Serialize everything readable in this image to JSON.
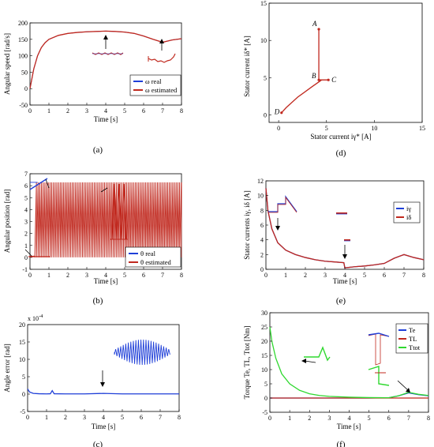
{
  "charts": [
    {
      "id": "a",
      "panel_label": "(a)",
      "type": "line",
      "xlabel": "Time [s]",
      "ylabel": "Angular speed [rad/s]",
      "xlim": [
        0,
        8
      ],
      "ylim": [
        -50,
        200
      ],
      "xticks": [
        0,
        1,
        2,
        3,
        4,
        5,
        6,
        7,
        8
      ],
      "yticks": [
        -50,
        0,
        50,
        100,
        150,
        200
      ],
      "xtick_labels": [
        "0",
        "1",
        "2",
        "3",
        "4",
        "5",
        "6",
        "7",
        "8"
      ],
      "ytick_labels": [
        "-50",
        "0",
        "50",
        "100",
        "150",
        "200"
      ],
      "grid": false,
      "legend_position": "bottom-right",
      "series": [
        {
          "name": "ω real",
          "color": "#1f3fd8",
          "x": [
            0,
            0.2,
            0.4,
            0.6,
            0.8,
            1,
            1.5,
            2,
            2.5,
            3,
            3.5,
            4,
            4.5,
            5,
            5.5,
            6,
            6.5,
            7,
            7.5,
            8
          ],
          "y": [
            0,
            60,
            100,
            125,
            140,
            150,
            162,
            168,
            171,
            173,
            174,
            175,
            174,
            172,
            168,
            160,
            150,
            141,
            148,
            152
          ]
        },
        {
          "name": "ω estimated",
          "color": "#c0281e",
          "x": [
            0,
            0.2,
            0.4,
            0.6,
            0.8,
            1,
            1.5,
            2,
            2.5,
            3,
            3.5,
            4,
            4.5,
            5,
            5.5,
            6,
            6.5,
            7,
            7.5,
            8
          ],
          "y": [
            0,
            60,
            100,
            125,
            140,
            150,
            162,
            168,
            171,
            173,
            174,
            175,
            174,
            172,
            168,
            160,
            150,
            141,
            148,
            152
          ]
        }
      ]
    },
    {
      "id": "b",
      "panel_label": "(b)",
      "type": "line",
      "xlabel": "Time [s]",
      "ylabel": "Angular position [rad]",
      "xlim": [
        0,
        8
      ],
      "ylim": [
        -1,
        7
      ],
      "xticks": [
        0,
        1,
        2,
        3,
        4,
        5,
        6,
        7,
        8
      ],
      "yticks": [
        -1,
        0,
        1,
        2,
        3,
        4,
        5,
        6,
        7
      ],
      "xtick_labels": [
        "0",
        "1",
        "2",
        "3",
        "4",
        "5",
        "6",
        "7",
        "8"
      ],
      "ytick_labels": [
        "-1",
        "0",
        "1",
        "2",
        "3",
        "4",
        "5",
        "6",
        "7"
      ],
      "grid": false,
      "legend_position": "bottom-right",
      "series": [
        {
          "name": "θ real",
          "color": "#1f3fd8",
          "min": 0,
          "max": 6.28
        },
        {
          "name": "θ estimated",
          "color": "#c0281e",
          "min": 0,
          "max": 6.28
        }
      ]
    },
    {
      "id": "c",
      "panel_label": "(c)",
      "type": "line",
      "xlabel": "Time [s]",
      "ylabel": "Angle error [rad]",
      "exponent_label": "x 10",
      "exponent_power": "-4",
      "xlim": [
        0,
        8
      ],
      "ylim": [
        -5,
        20
      ],
      "xticks": [
        0,
        1,
        2,
        3,
        4,
        5,
        6,
        7,
        8
      ],
      "yticks": [
        -5,
        0,
        5,
        10,
        15,
        20
      ],
      "xtick_labels": [
        "0",
        "1",
        "2",
        "3",
        "4",
        "5",
        "6",
        "7",
        "8"
      ],
      "ytick_labels": [
        "-5",
        "0",
        "5",
        "10",
        "15",
        "20"
      ],
      "grid": false,
      "series": [
        {
          "color": "#1f3fd8",
          "x": [
            0,
            0.1,
            0.3,
            0.6,
            1.0,
            1.2,
            1.3,
            1.4,
            2,
            3,
            4,
            5,
            6,
            7,
            8
          ],
          "y": [
            1.5,
            0.6,
            0.2,
            0.1,
            0.05,
            0.1,
            1.0,
            0.1,
            0.05,
            0.05,
            0.2,
            0.05,
            0.05,
            0.05,
            0.05
          ]
        }
      ]
    },
    {
      "id": "d",
      "panel_label": "(d)",
      "type": "line",
      "xlabel": "Stator current iγ* [A]",
      "ylabel": "Stator current iδ* [A]",
      "xlim": [
        -1,
        15
      ],
      "ylim": [
        -1,
        15
      ],
      "xticks": [
        0,
        5,
        10,
        15
      ],
      "yticks": [
        0,
        5,
        10,
        15
      ],
      "xtick_labels": [
        "0",
        "5",
        "10",
        "15"
      ],
      "ytick_labels": [
        "0",
        "5",
        "10",
        "15"
      ],
      "grid": false,
      "series": [
        {
          "color": "#c0281e",
          "x": [
            0.3,
            0.8,
            2,
            3.5,
            4.5,
            5.2,
            5.2,
            4.2,
            4.2,
            4.2
          ],
          "y": [
            0.3,
            1.0,
            2.4,
            3.8,
            4.7,
            4.7,
            4.7,
            4.7,
            8,
            11.5
          ]
        }
      ],
      "points": [
        {
          "label": "A",
          "x": 4.2,
          "y": 11.5
        },
        {
          "label": "B",
          "x": 4.2,
          "y": 4.7
        },
        {
          "label": "C",
          "x": 5.2,
          "y": 4.7
        },
        {
          "label": "D",
          "x": 0.3,
          "y": 0.3
        }
      ]
    },
    {
      "id": "e",
      "panel_label": "(e)",
      "type": "line",
      "xlabel": "Time [s]",
      "ylabel": "Stator currents iγ, iδ [A]",
      "xlim": [
        0,
        8
      ],
      "ylim": [
        0,
        12
      ],
      "xticks": [
        0,
        1,
        2,
        3,
        4,
        5,
        6,
        7,
        8
      ],
      "yticks": [
        0,
        2,
        4,
        6,
        8,
        10,
        12
      ],
      "xtick_labels": [
        "0",
        "1",
        "2",
        "3",
        "4",
        "5",
        "6",
        "7",
        "8"
      ],
      "ytick_labels": [
        "0",
        "2",
        "4",
        "6",
        "8",
        "10",
        "12"
      ],
      "grid": false,
      "legend_position": "right",
      "series": [
        {
          "name": "iγ",
          "color": "#1f3fd8",
          "x": [
            0,
            0.1,
            0.3,
            0.6,
            1,
            1.5,
            2,
            2.5,
            3,
            3.5,
            3.95,
            4.0,
            4.5,
            5,
            5.5,
            6,
            6.5,
            7,
            7.5,
            8
          ],
          "y": [
            11,
            8,
            5.5,
            3.6,
            2.6,
            2.0,
            1.6,
            1.3,
            1.1,
            1.0,
            0.9,
            0.2,
            0.35,
            0.45,
            0.6,
            0.8,
            1.5,
            2.0,
            1.6,
            1.3
          ]
        },
        {
          "name": "iδ",
          "color": "#c0281e",
          "x": [
            0,
            0.1,
            0.3,
            0.6,
            1,
            1.5,
            2,
            2.5,
            3,
            3.5,
            3.95,
            4.0,
            4.5,
            5,
            5.5,
            6,
            6.5,
            7,
            7.5,
            8
          ],
          "y": [
            11,
            8,
            5.5,
            3.6,
            2.6,
            2.0,
            1.6,
            1.3,
            1.1,
            1.0,
            0.9,
            0.2,
            0.35,
            0.45,
            0.6,
            0.8,
            1.5,
            2.0,
            1.6,
            1.3
          ]
        }
      ]
    },
    {
      "id": "f",
      "panel_label": "(f)",
      "type": "line",
      "xlabel": "Time [s]",
      "ylabel": "Torque Te, TL, Ttot [Nm]",
      "xlim": [
        0,
        8
      ],
      "ylim": [
        -5,
        30
      ],
      "xticks": [
        0,
        1,
        2,
        3,
        4,
        5,
        6,
        7,
        8
      ],
      "yticks": [
        -5,
        0,
        5,
        10,
        15,
        20,
        25,
        30
      ],
      "xtick_labels": [
        "0",
        "1",
        "2",
        "3",
        "4",
        "5",
        "6",
        "7",
        "8"
      ],
      "ytick_labels": [
        "-5",
        "0",
        "5",
        "10",
        "15",
        "20",
        "25",
        "30"
      ],
      "grid": false,
      "legend_position": "top-right",
      "series": [
        {
          "name": "Te",
          "color": "#1f3fd8",
          "x": [
            0,
            1,
            2,
            3,
            4,
            5,
            6.0,
            6.5,
            7.0,
            7.5,
            8
          ],
          "y": [
            0,
            0,
            0,
            0,
            0,
            0,
            0.1,
            0.8,
            1.8,
            1.2,
            0.8
          ]
        },
        {
          "name": "TL",
          "color": "#c0281e",
          "x": [
            0,
            6,
            8
          ],
          "y": [
            0,
            0,
            0
          ]
        },
        {
          "name": "Ttot",
          "color": "#2fd82f",
          "x": [
            0,
            0.1,
            0.3,
            0.6,
            1.0,
            1.5,
            2,
            2.5,
            3,
            4,
            5,
            6,
            6.5,
            7,
            7.5,
            8
          ],
          "y": [
            25,
            20,
            14,
            8.5,
            5,
            2.7,
            1.5,
            0.9,
            0.6,
            0.3,
            0.15,
            0.1,
            0.8,
            2.0,
            1.3,
            0.9
          ]
        }
      ]
    }
  ]
}
